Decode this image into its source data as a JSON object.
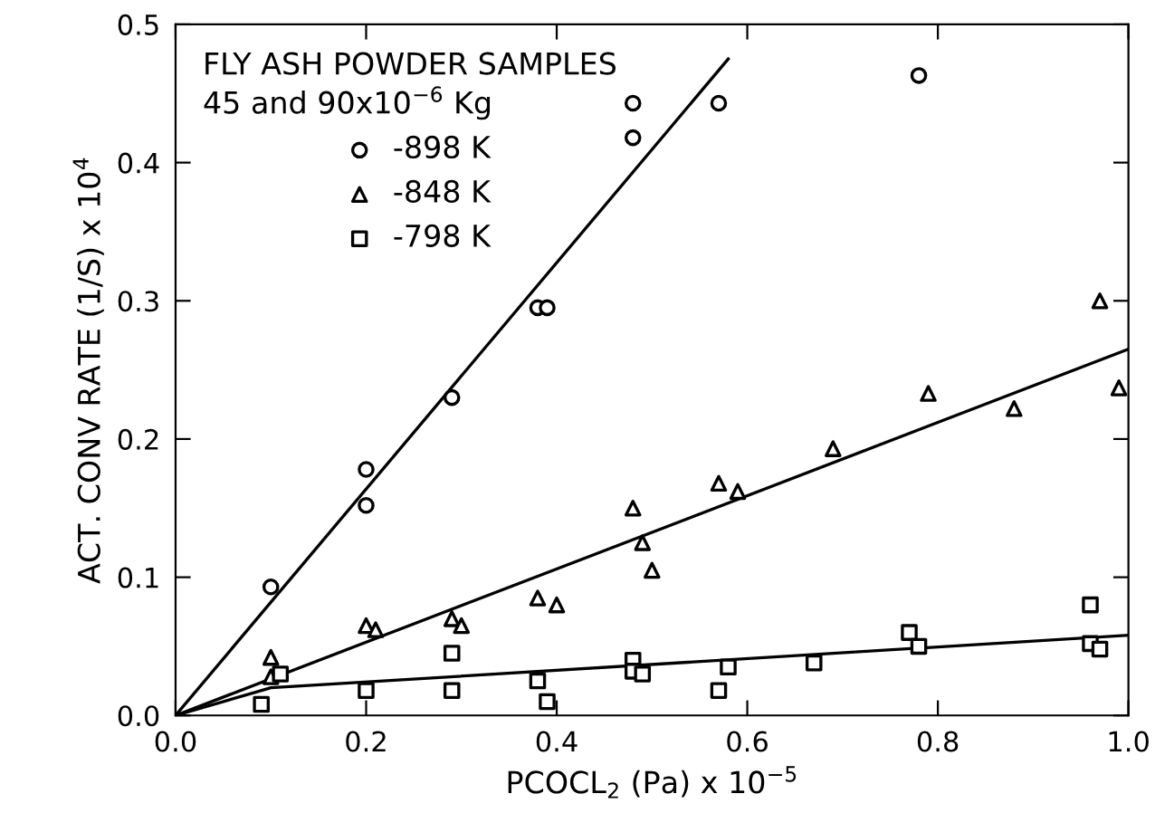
{
  "chart_data": {
    "type": "scatter",
    "xlabel": "PCOCL$_{2}$ (Pa) x 10$^{−5}$",
    "ylabel": "ACT. CONV RATE (1/S) x 10$^{4}$",
    "legend_title": "FLY ASH POWDER SAMPLES\n45 and 90x10$^{−6}$ Kg",
    "legend": "top left",
    "grid": false,
    "xlim": [
      0,
      1.0
    ],
    "ylim": [
      0,
      0.5
    ],
    "xticks": [
      {
        "value": 0,
        "label": "0.0"
      },
      0.2,
      0.4,
      0.6,
      0.8,
      {
        "value": 1,
        "label": "1.0"
      }
    ],
    "yticks": [
      {
        "value": 0,
        "label": "0.0"
      },
      0.1,
      0.2,
      0.3,
      0.4,
      0.5
    ],
    "series": [
      {
        "name": "-898 K",
        "marker": "circle",
        "color": "#000000",
        "x": [
          0.1,
          0.2,
          0.2,
          0.29,
          0.38,
          0.39,
          0.48,
          0.48,
          0.57,
          0.78
        ],
        "values": [
          0.093,
          0.152,
          0.178,
          0.23,
          0.295,
          0.295,
          0.418,
          0.443,
          0.443,
          0.463
        ]
      },
      {
        "name": "-848 K",
        "marker": "triangle",
        "color": "#000000",
        "x": [
          0.1,
          0.1,
          0.2,
          0.21,
          0.29,
          0.3,
          0.38,
          0.4,
          0.48,
          0.49,
          0.5,
          0.57,
          0.59,
          0.69,
          0.79,
          0.88,
          0.97,
          0.99
        ],
        "values": [
          0.042,
          0.028,
          0.065,
          0.062,
          0.07,
          0.065,
          0.085,
          0.08,
          0.15,
          0.125,
          0.105,
          0.168,
          0.162,
          0.193,
          0.233,
          0.222,
          0.3,
          0.237
        ]
      },
      {
        "name": "-798 K",
        "marker": "square",
        "color": "#000000",
        "x": [
          0.09,
          0.11,
          0.2,
          0.29,
          0.29,
          0.38,
          0.39,
          0.48,
          0.48,
          0.49,
          0.57,
          0.58,
          0.67,
          0.77,
          0.78,
          0.96,
          0.96,
          0.97
        ],
        "values": [
          0.008,
          0.03,
          0.018,
          0.045,
          0.018,
          0.025,
          0.01,
          0.04,
          0.032,
          0.03,
          0.018,
          0.035,
          0.038,
          0.06,
          0.05,
          0.08,
          0.052,
          0.048
        ]
      },
      {
        "type": "line",
        "marker": "none",
        "line_style": "solid",
        "color": "#000000",
        "x": [
          0,
          0.58
        ],
        "values": [
          0,
          0.475
        ]
      },
      {
        "type": "line",
        "marker": "none",
        "line_style": "solid",
        "color": "#000000",
        "x": [
          0,
          1.0
        ],
        "values": [
          0,
          0.265
        ]
      },
      {
        "type": "line",
        "marker": "none",
        "line_style": "solid",
        "color": "#000000",
        "x": [
          0,
          0.1,
          1.0
        ],
        "values": [
          0,
          0.02,
          0.058
        ]
      }
    ]
  }
}
